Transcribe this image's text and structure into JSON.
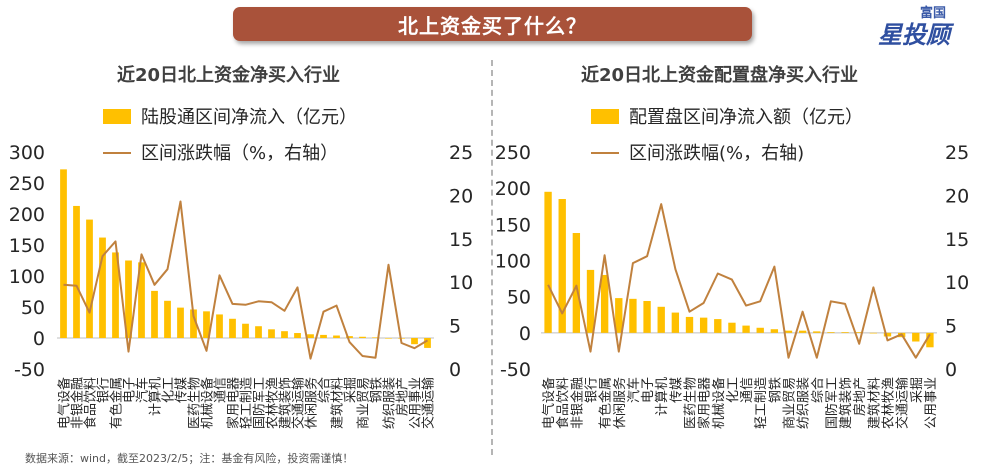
{
  "header": {
    "title": "北上资金买了什么？"
  },
  "logo": {
    "line1": "富国",
    "line2": "星投顾"
  },
  "footer": {
    "source": "数据来源：wind，截至2023/2/5；注：基金有风险，投资需谨慎！"
  },
  "colors": {
    "bar": "#ffc000",
    "line": "#c0813e",
    "banner": "#a9523a"
  },
  "chart_data": [
    {
      "type": "bar",
      "title": "近20日北上资金净买入行业",
      "legend": [
        "陆股通区间净流入（亿元）",
        "区间涨跌幅（%，右轴）"
      ],
      "ylim": [
        -50,
        300
      ],
      "yticks": [
        300,
        250,
        200,
        150,
        100,
        50,
        0,
        -50
      ],
      "y2lim": [
        0,
        25
      ],
      "y2ticks": [
        25,
        20,
        15,
        10,
        5,
        0
      ],
      "categories": [
        "电气设备",
        "非银金融",
        "食品饮料",
        "银行",
        "有色金属",
        "电子",
        "汽车",
        "计算机",
        "化工",
        "传媒",
        "医药生物",
        "机械设备",
        "通信",
        "家用电器",
        "轻工制造",
        "国防军工",
        "农林牧渔",
        "建筑装饰",
        "交通运输",
        "休闲服务",
        "综合",
        "建筑材料",
        "采掘",
        "商业贸易",
        "钢铁",
        "纺织服装",
        "房地产",
        "公用事业",
        "交通运输"
      ],
      "category_labels": [
        "电气设备",
        "非银金融",
        "食品饮料",
        "银行",
        "有色金属",
        "电子",
        "汽车",
        "计算机",
        "化工",
        "传媒",
        "医药生物",
        "机械设备",
        "通信",
        "家用电器",
        "轻工制造",
        "国防军工",
        "农林牧渔",
        "建筑装饰",
        "交通运输",
        "休闲服务",
        "综合",
        "建筑材料",
        "采掘",
        "商业贸易",
        "钢铁",
        "纺织服装",
        "房地产",
        "公用事业",
        "交通运输"
      ],
      "series": [
        {
          "name": "陆股通区间净流入（亿元）",
          "type": "bar",
          "values": [
            272,
            213,
            191,
            162,
            138,
            125,
            122,
            76,
            60,
            49,
            46,
            43,
            38,
            31,
            23,
            19,
            14,
            11,
            8,
            6,
            5,
            4,
            3,
            2,
            1,
            0,
            0,
            -10,
            -16
          ]
        },
        {
          "name": "区间涨跌幅（%，右轴）",
          "type": "line",
          "axis": "right",
          "values": [
            9.7,
            9.6,
            6.5,
            13.0,
            14.7,
            2.0,
            13.2,
            9.7,
            11.5,
            19.3,
            6.1,
            2.1,
            10.8,
            7.5,
            7.4,
            7.8,
            7.7,
            6.7,
            9.4,
            1.2,
            6.6,
            7.3,
            3.1,
            1.5,
            1.3,
            12.0,
            3.0,
            2.4,
            3.3
          ]
        }
      ]
    },
    {
      "type": "bar",
      "title": "近20日北上资金配置盘净买入行业",
      "legend": [
        "配置盘区间净流入额（亿元）",
        "区间涨跌幅(%，右轴)"
      ],
      "ylim": [
        -50,
        250
      ],
      "yticks": [
        250,
        200,
        150,
        100,
        50,
        0,
        -50
      ],
      "y2lim": [
        0,
        25
      ],
      "y2ticks": [
        25,
        20,
        15,
        10,
        5,
        0
      ],
      "categories": [
        "电气设备",
        "食品饮料",
        "非银金融",
        "银行",
        "有色金属",
        "休闲服务",
        "汽车",
        "电子",
        "计算机",
        "传媒",
        "医药生物",
        "家用电器",
        "机械设备",
        "化工",
        "通信",
        "轻工制造",
        "钢铁",
        "商业贸易",
        "纺织服装",
        "综合",
        "国防军工",
        "建筑装饰",
        "房地产",
        "建筑材料",
        "农林牧渔",
        "交通运输",
        "采掘",
        "公用事业"
      ],
      "category_labels": [
        "电气设备",
        "食品饮料",
        "非银金融",
        "银行",
        "有色金属",
        "休闲服务",
        "汽车",
        "电子",
        "计算机",
        "传媒",
        "医药生物",
        "家用电器",
        "机械设备",
        "化工",
        "通信",
        "轻工制造",
        "钢铁",
        "商业贸易",
        "纺织服装",
        "综合",
        "国防军工",
        "建筑装饰",
        "房地产",
        "建筑材料",
        "农林牧渔",
        "交通运输",
        "采掘",
        "公用事业"
      ],
      "series": [
        {
          "name": "配置盘区间净流入额（亿元）",
          "type": "bar",
          "values": [
            195,
            185,
            138,
            87,
            80,
            48,
            47,
            44,
            36,
            28,
            22,
            21,
            19,
            14,
            10,
            7,
            5,
            3,
            3,
            2,
            1,
            1,
            1,
            0,
            -5,
            -6,
            -12,
            -20
          ]
        },
        {
          "name": "区间涨跌幅(%，右轴)",
          "type": "line",
          "axis": "right",
          "values": [
            9.7,
            6.4,
            9.6,
            2.0,
            13.1,
            2.0,
            12.2,
            13.0,
            19.0,
            11.5,
            6.6,
            7.6,
            11.0,
            10.3,
            7.3,
            7.8,
            11.8,
            1.3,
            6.6,
            1.3,
            7.8,
            7.5,
            2.9,
            9.4,
            3.3,
            4.0,
            1.3,
            4.0
          ]
        }
      ]
    }
  ]
}
